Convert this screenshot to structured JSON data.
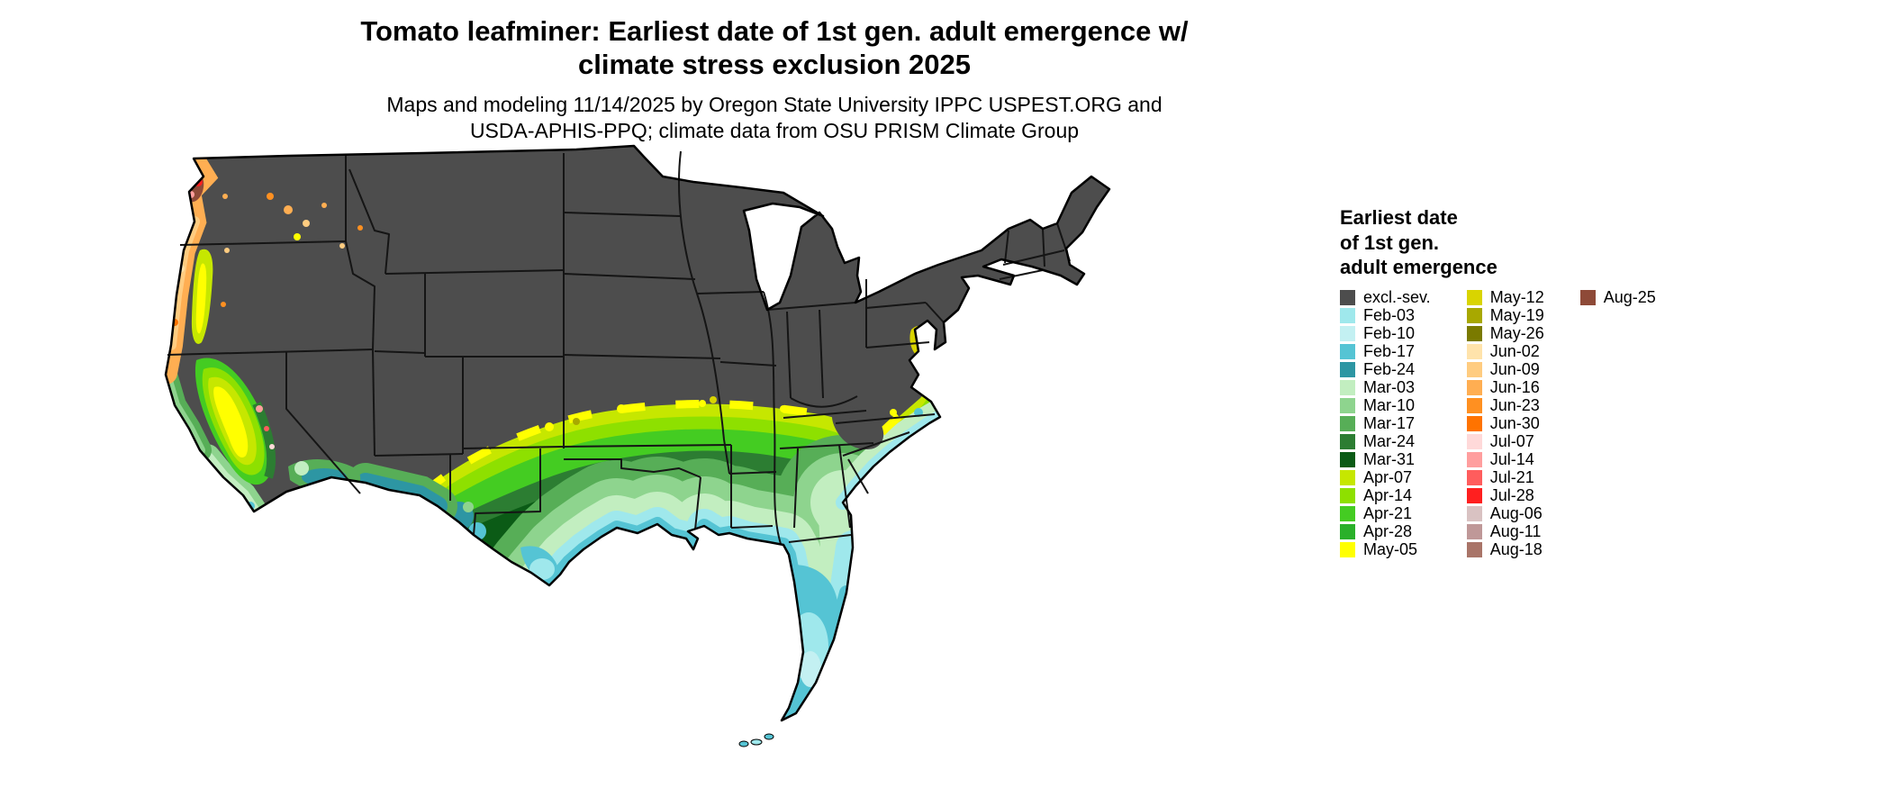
{
  "header": {
    "title_line1": "Tomato leafminer: Earliest date of 1st gen. adult emergence w/",
    "title_line2": "climate stress exclusion 2025",
    "subtitle_line1": "Maps and modeling 11/14/2025 by Oregon State University IPPC USPEST.ORG and",
    "subtitle_line2": "USDA-APHIS-PPQ; climate data from OSU PRISM Climate Group"
  },
  "legend": {
    "title_lines": [
      "Earliest date",
      "of 1st gen.",
      "adult emergence"
    ],
    "columns": [
      {
        "entries": [
          {
            "label": "excl.-sev.",
            "color": "#4d4d4d"
          },
          {
            "label": "Feb-03",
            "color": "#9fe8ec"
          },
          {
            "label": "Feb-10",
            "color": "#c3f0f2"
          },
          {
            "label": "Feb-17",
            "color": "#55c4d4"
          },
          {
            "label": "Feb-24",
            "color": "#2d96a3"
          },
          {
            "label": "Mar-03",
            "color": "#c2eec0"
          },
          {
            "label": "Mar-10",
            "color": "#8ed48e"
          },
          {
            "label": "Mar-17",
            "color": "#57ae57"
          },
          {
            "label": "Mar-24",
            "color": "#2c7d32"
          },
          {
            "label": "Mar-31",
            "color": "#0b5b16"
          },
          {
            "label": "Apr-07",
            "color": "#c6e700"
          },
          {
            "label": "Apr-14",
            "color": "#8ee000"
          },
          {
            "label": "Apr-21",
            "color": "#44cc22"
          },
          {
            "label": "Apr-28",
            "color": "#2ab02a"
          },
          {
            "label": "May-05",
            "color": "#ffff00"
          }
        ]
      },
      {
        "entries": [
          {
            "label": "May-12",
            "color": "#d9d400"
          },
          {
            "label": "May-19",
            "color": "#a8a800"
          },
          {
            "label": "May-26",
            "color": "#7a7a00"
          },
          {
            "label": "Jun-02",
            "color": "#ffe3ab"
          },
          {
            "label": "Jun-09",
            "color": "#ffcc80"
          },
          {
            "label": "Jun-16",
            "color": "#ffae52"
          },
          {
            "label": "Jun-23",
            "color": "#ff9021"
          },
          {
            "label": "Jun-30",
            "color": "#ff7300"
          },
          {
            "label": "Jul-07",
            "color": "#ffd9d9"
          },
          {
            "label": "Jul-14",
            "color": "#ff9e9e"
          },
          {
            "label": "Jul-21",
            "color": "#ff5d5d"
          },
          {
            "label": "Jul-28",
            "color": "#ff1f1f"
          },
          {
            "label": "Aug-06",
            "color": "#d9c2c2"
          },
          {
            "label": "Aug-11",
            "color": "#bf9898"
          },
          {
            "label": "Aug-18",
            "color": "#a97468"
          }
        ]
      },
      {
        "entries": [
          {
            "label": "Aug-25",
            "color": "#8e4a38"
          }
        ]
      }
    ]
  },
  "map": {
    "region": "Contiguous United States",
    "excluded_color": "#4d4d4d",
    "background_color": "#ffffff"
  }
}
